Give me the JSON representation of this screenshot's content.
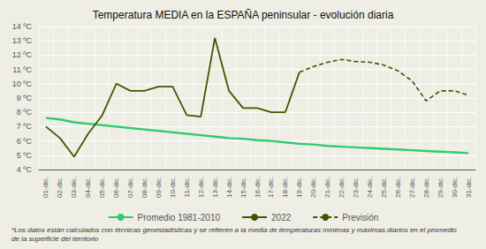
{
  "chart_data": {
    "type": "line",
    "title": "Temperatura MEDIA en la ESPAÑA peninsular - evolución diaria",
    "footnote": "*Los datos están calculados con técnicas geoestadísticas y se refieren a la media de temperaturas mínimas y máximas diarios en el promedio de la superficie del territorio",
    "categories": [
      "01-dic.",
      "02-dic.",
      "03-dic.",
      "04-dic.",
      "05-dic.",
      "06-dic.",
      "07-dic.",
      "08-dic.",
      "09-dic.",
      "10-dic.",
      "11-dic.",
      "12-dic.",
      "13-dic.",
      "14-dic.",
      "15-dic.",
      "16-dic.",
      "17-dic.",
      "18-dic.",
      "19-dic.",
      "20-dic.",
      "21-dic.",
      "22-dic.",
      "23-dic.",
      "24-dic.",
      "25-dic.",
      "26-dic.",
      "27-dic.",
      "28-dic.",
      "29-dic.",
      "30-dic.",
      "31-dic."
    ],
    "series": [
      {
        "name": "Promedio 1981-2010",
        "color": "#2ecc71",
        "line_style": "solid",
        "values": [
          7.6,
          7.5,
          7.3,
          7.2,
          7.1,
          7.0,
          6.9,
          6.8,
          6.7,
          6.6,
          6.5,
          6.4,
          6.3,
          6.2,
          6.15,
          6.05,
          6.0,
          5.9,
          5.8,
          5.75,
          5.65,
          5.6,
          5.55,
          5.5,
          5.45,
          5.4,
          5.35,
          5.3,
          5.25,
          5.2,
          5.15
        ]
      },
      {
        "name": "2022",
        "color": "#4a5200",
        "line_style": "solid",
        "values": [
          7.0,
          6.2,
          4.9,
          6.5,
          7.8,
          10.0,
          9.5,
          9.5,
          9.8,
          9.8,
          7.8,
          7.7,
          13.2,
          9.5,
          8.3,
          8.3,
          8.0,
          8.0,
          null,
          null,
          null,
          null,
          null,
          null,
          null,
          null,
          null,
          null,
          null,
          null,
          null
        ]
      },
      {
        "name": "Previsión",
        "color": "#4a5200",
        "line_style": "dashed",
        "values": [
          null,
          null,
          null,
          null,
          null,
          null,
          null,
          null,
          null,
          null,
          null,
          null,
          null,
          null,
          null,
          null,
          null,
          null,
          10.8,
          11.2,
          11.5,
          11.7,
          11.55,
          11.5,
          11.3,
          10.9,
          10.2,
          8.8,
          9.5,
          9.5,
          9.2
        ]
      }
    ],
    "ylim": [
      4,
      14
    ],
    "yticks": [
      {
        "value": 4,
        "label": "4 ºC"
      },
      {
        "value": 5,
        "label": "5 ºC"
      },
      {
        "value": 6,
        "label": "6 ºC"
      },
      {
        "value": 7,
        "label": "7 ºC"
      },
      {
        "value": 8,
        "label": "8 ºC"
      },
      {
        "value": 9,
        "label": "9 ºC"
      },
      {
        "value": 10,
        "label": "10 ºC"
      },
      {
        "value": 11,
        "label": "11 ºC"
      },
      {
        "value": 12,
        "label": "12 ºC"
      },
      {
        "value": 13,
        "label": "13 ºC"
      },
      {
        "value": 14,
        "label": "14 ºC"
      }
    ],
    "grid": true,
    "legend": "bottom"
  }
}
